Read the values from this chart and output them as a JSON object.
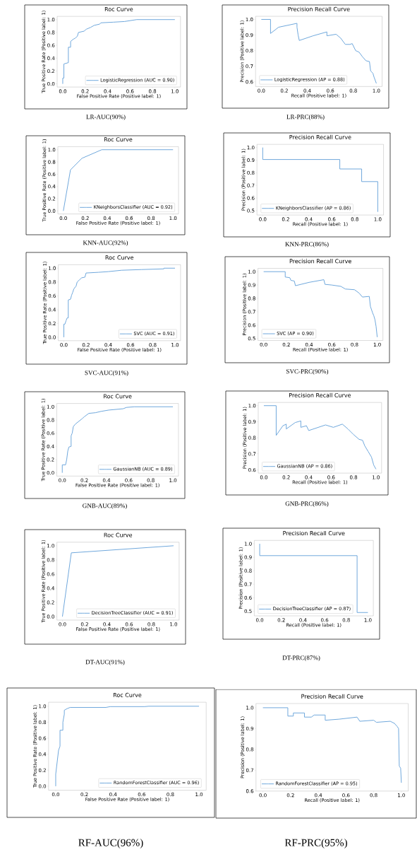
{
  "chart_data": [
    {
      "type": "line",
      "title": "Roc Curve",
      "xlabel": "False Positive Rate (Positive label: 1)",
      "ylabel": "True Positive Rate (Positive label: 1)",
      "legend": "bottom right",
      "annotations": [
        "LR-AUC(90%)"
      ],
      "series": [
        {
          "name": "LogisticRegression (AUC = 0.90)",
          "color": "#6fa8dc",
          "x": [
            0,
            0,
            0.01,
            0.01,
            0.05,
            0.05,
            0.07,
            0.07,
            0.09,
            0.11,
            0.13,
            0.14,
            0.19,
            0.21,
            0.25,
            0.28,
            0.33,
            0.34,
            0.45,
            0.55,
            0.66,
            1
          ],
          "values": [
            0,
            0.09,
            0.09,
            0.31,
            0.33,
            0.57,
            0.57,
            0.66,
            0.69,
            0.71,
            0.74,
            0.8,
            0.82,
            0.85,
            0.88,
            0.91,
            0.93,
            0.95,
            0.96,
            0.97,
            1,
            1
          ]
        }
      ],
      "xlim": [
        -0.05,
        1.05
      ],
      "ylim": [
        -0.05,
        1.05
      ],
      "xticks": [
        {
          "value": 0,
          "label": "0.0"
        },
        {
          "value": 0.2,
          "label": "0.2"
        },
        {
          "value": 0.4,
          "label": "0.4"
        },
        {
          "value": 0.6,
          "label": "0.6"
        },
        {
          "value": 0.8,
          "label": "0.8"
        },
        {
          "value": 1,
          "label": "1.0"
        }
      ],
      "yticks": [
        {
          "value": 0,
          "label": "0.0"
        },
        {
          "value": 0.2,
          "label": "0.2"
        },
        {
          "value": 0.4,
          "label": "0.4"
        },
        {
          "value": 0.6,
          "label": "0.6"
        },
        {
          "value": 0.8,
          "label": "0.8"
        },
        {
          "value": 1,
          "label": "1.0"
        }
      ]
    },
    {
      "type": "line",
      "title": "Precision Recall Curve",
      "xlabel": "Recall (Positive label: 1)",
      "ylabel": "Precision (Positive label: 1)",
      "legend": "bottom left",
      "annotations": [
        "LR-PRC(88%)"
      ],
      "series": [
        {
          "name": "LogisticRegression (AP = 0.88)",
          "color": "#6fa8dc",
          "x": [
            0,
            0.08,
            0.08,
            0.15,
            0.31,
            0.31,
            0.32,
            0.33,
            0.45,
            0.57,
            0.57,
            0.65,
            0.69,
            0.73,
            0.77,
            0.79,
            0.82,
            0.85,
            0.88,
            0.91,
            0.94,
            0.95,
            0.97,
            0.98,
            1
          ],
          "values": [
            1,
            1,
            0.91,
            0.95,
            0.975,
            0.95,
            0.9,
            0.865,
            0.895,
            0.92,
            0.895,
            0.905,
            0.88,
            0.84,
            0.84,
            0.845,
            0.8,
            0.79,
            0.76,
            0.735,
            0.73,
            0.67,
            0.655,
            0.63,
            0.59
          ]
        }
      ],
      "xlim": [
        -0.05,
        1.05
      ],
      "ylim": [
        0.57,
        1.02
      ],
      "xticks": [
        {
          "value": 0,
          "label": "0.0"
        },
        {
          "value": 0.2,
          "label": "0.2"
        },
        {
          "value": 0.4,
          "label": "0.4"
        },
        {
          "value": 0.6,
          "label": "0.6"
        },
        {
          "value": 0.8,
          "label": "0.8"
        },
        {
          "value": 1,
          "label": "1.0"
        }
      ],
      "yticks": [
        {
          "value": 0.6,
          "label": "0.6"
        },
        {
          "value": 0.7,
          "label": "0.7"
        },
        {
          "value": 0.8,
          "label": "0.8"
        },
        {
          "value": 0.9,
          "label": "0.9"
        },
        {
          "value": 1,
          "label": "1.0"
        }
      ]
    },
    {
      "type": "line",
      "title": "Roc Curve",
      "xlabel": "False Positive Rate (Positive label: 1)",
      "ylabel": "True Positive Rate (Positive label: 1)",
      "legend": "bottom right",
      "annotations": [
        "KNN-AUC(92%)"
      ],
      "series": [
        {
          "name": "KNeighborsClassifier (AUC = 0.92)",
          "color": "#6fa8dc",
          "x": [
            0,
            0.065,
            0.17,
            0.35,
            1
          ],
          "values": [
            0,
            0.67,
            0.86,
            1,
            1
          ]
        }
      ],
      "xlim": [
        -0.05,
        1.05
      ],
      "ylim": [
        -0.05,
        1.05
      ],
      "xticks": [
        {
          "value": 0,
          "label": "0.0"
        },
        {
          "value": 0.2,
          "label": "0.2"
        },
        {
          "value": 0.4,
          "label": "0.4"
        },
        {
          "value": 0.6,
          "label": "0.6"
        },
        {
          "value": 0.8,
          "label": "0.8"
        },
        {
          "value": 1,
          "label": "1.0"
        }
      ],
      "yticks": [
        {
          "value": 0,
          "label": "0.0"
        },
        {
          "value": 0.2,
          "label": "0.2"
        },
        {
          "value": 0.4,
          "label": "0.4"
        },
        {
          "value": 0.6,
          "label": "0.6"
        },
        {
          "value": 0.8,
          "label": "0.8"
        },
        {
          "value": 1,
          "label": "1.0"
        }
      ]
    },
    {
      "type": "line",
      "title": "Precision Recall Curve",
      "xlabel": "Recall (Positive label: 1)",
      "ylabel": "Precision (Positive label: 1)",
      "legend": "bottom left",
      "annotations": [
        "KNN-PRC(86%)"
      ],
      "series": [
        {
          "name": "KNeighborsClassifier (AP = 0.86)",
          "color": "#6fa8dc",
          "x": [
            0,
            0,
            0.67,
            0.67,
            0.86,
            0.86,
            1,
            1
          ],
          "values": [
            1,
            0.905,
            0.905,
            0.83,
            0.83,
            0.73,
            0.73,
            0.49
          ]
        }
      ],
      "xlim": [
        -0.05,
        1.05
      ],
      "ylim": [
        0.465,
        1.025
      ],
      "xticks": [
        {
          "value": 0,
          "label": "0.0"
        },
        {
          "value": 0.2,
          "label": "0.2"
        },
        {
          "value": 0.4,
          "label": "0.4"
        },
        {
          "value": 0.6,
          "label": "0.6"
        },
        {
          "value": 0.8,
          "label": "0.8"
        },
        {
          "value": 1,
          "label": "1.0"
        }
      ],
      "yticks": [
        {
          "value": 0.5,
          "label": "0.5"
        },
        {
          "value": 0.6,
          "label": "0.6"
        },
        {
          "value": 0.7,
          "label": "0.7"
        },
        {
          "value": 0.8,
          "label": "0.8"
        },
        {
          "value": 0.9,
          "label": "0.9"
        },
        {
          "value": 1,
          "label": "1.0"
        }
      ]
    },
    {
      "type": "line",
      "title": "Roc Curve",
      "xlabel": "False Positive Rate (Positive label: 1)",
      "ylabel": "True Positive Rate (Positive label: 1)",
      "legend": "bottom right",
      "annotations": [
        "SVC-AUC(91%)"
      ],
      "series": [
        {
          "name": "SVC (AUC = 0.91)",
          "color": "#6fa8dc",
          "x": [
            0,
            0,
            0.01,
            0.02,
            0.03,
            0.04,
            0.04,
            0.06,
            0.07,
            0.08,
            0.09,
            0.11,
            0.12,
            0.14,
            0.16,
            0.19,
            0.2,
            0.31,
            0.4,
            0.52,
            0.7,
            0.9,
            0.9,
            1
          ],
          "values": [
            0,
            0.19,
            0.19,
            0.24,
            0.28,
            0.28,
            0.54,
            0.55,
            0.61,
            0.65,
            0.7,
            0.74,
            0.8,
            0.83,
            0.86,
            0.87,
            0.93,
            0.94,
            0.95,
            0.97,
            0.98,
            0.99,
            1,
            1
          ]
        }
      ],
      "xlim": [
        -0.05,
        1.05
      ],
      "ylim": [
        -0.05,
        1.05
      ],
      "xticks": [
        {
          "value": 0,
          "label": "0.0"
        },
        {
          "value": 0.2,
          "label": "0.2"
        },
        {
          "value": 0.4,
          "label": "0.4"
        },
        {
          "value": 0.6,
          "label": "0.6"
        },
        {
          "value": 0.8,
          "label": "0.8"
        },
        {
          "value": 1,
          "label": "1.0"
        }
      ],
      "yticks": [
        {
          "value": 0,
          "label": "0.0"
        },
        {
          "value": 0.2,
          "label": "0.2"
        },
        {
          "value": 0.4,
          "label": "0.4"
        },
        {
          "value": 0.6,
          "label": "0.6"
        },
        {
          "value": 0.8,
          "label": "0.8"
        },
        {
          "value": 1,
          "label": "1.0"
        }
      ]
    },
    {
      "type": "line",
      "title": "Precision Recall Curve",
      "xlabel": "Recall (Positive label: 1)",
      "ylabel": "Precision (Positive label: 1)",
      "legend": "bottom left",
      "annotations": [
        "SVC-PRC(90%)"
      ],
      "series": [
        {
          "name": "SVC (AP = 0.90)",
          "color": "#6fa8dc",
          "x": [
            0,
            0.19,
            0.19,
            0.23,
            0.24,
            0.27,
            0.28,
            0.4,
            0.53,
            0.54,
            0.6,
            0.68,
            0.72,
            0.8,
            0.84,
            0.87,
            0.93,
            0.94,
            0.96,
            0.97,
            0.98,
            0.99,
            1
          ],
          "values": [
            1,
            1,
            0.96,
            0.955,
            0.935,
            0.93,
            0.895,
            0.92,
            0.94,
            0.905,
            0.9,
            0.89,
            0.87,
            0.865,
            0.84,
            0.81,
            0.815,
            0.74,
            0.69,
            0.67,
            0.64,
            0.59,
            0.51
          ]
        }
      ],
      "xlim": [
        -0.05,
        1.05
      ],
      "ylim": [
        0.485,
        1.025
      ],
      "xticks": [
        {
          "value": 0,
          "label": "0.0"
        },
        {
          "value": 0.2,
          "label": "0.2"
        },
        {
          "value": 0.4,
          "label": "0.4"
        },
        {
          "value": 0.6,
          "label": "0.6"
        },
        {
          "value": 0.8,
          "label": "0.8"
        },
        {
          "value": 1,
          "label": "1.0"
        }
      ],
      "yticks": [
        {
          "value": 0.5,
          "label": "0.5"
        },
        {
          "value": 0.6,
          "label": "0.6"
        },
        {
          "value": 0.7,
          "label": "0.7"
        },
        {
          "value": 0.8,
          "label": "0.8"
        },
        {
          "value": 0.9,
          "label": "0.9"
        },
        {
          "value": 1,
          "label": "1.0"
        }
      ]
    },
    {
      "type": "line",
      "title": "Roc Curve",
      "xlabel": "False Positive Rate (Positive label: 1)",
      "ylabel": "True Positive Rate (Positive label: 1)",
      "legend": "bottom right",
      "annotations": [
        "GNB-AUC(89%)"
      ],
      "series": [
        {
          "name": "GaussianNB (AUC = 0.89)",
          "color": "#6fa8dc",
          "x": [
            0,
            0,
            0.03,
            0.04,
            0.05,
            0.06,
            0.08,
            0.08,
            0.09,
            0.1,
            0.12,
            0.15,
            0.18,
            0.2,
            0.24,
            0.3,
            0.35,
            0.42,
            0.55,
            0.58,
            0.65,
            1
          ],
          "values": [
            0,
            0.12,
            0.12,
            0.2,
            0.33,
            0.39,
            0.4,
            0.56,
            0.6,
            0.7,
            0.74,
            0.78,
            0.82,
            0.85,
            0.9,
            0.91,
            0.93,
            0.95,
            0.97,
            0.99,
            1,
            1
          ]
        }
      ],
      "xlim": [
        -0.05,
        1.05
      ],
      "ylim": [
        -0.05,
        1.05
      ],
      "xticks": [
        {
          "value": 0,
          "label": "0.0"
        },
        {
          "value": 0.2,
          "label": "0.2"
        },
        {
          "value": 0.4,
          "label": "0.4"
        },
        {
          "value": 0.6,
          "label": "0.6"
        },
        {
          "value": 0.8,
          "label": "0.8"
        },
        {
          "value": 1,
          "label": "1.0"
        }
      ],
      "yticks": [
        {
          "value": 0,
          "label": "0.0"
        },
        {
          "value": 0.2,
          "label": "0.2"
        },
        {
          "value": 0.4,
          "label": "0.4"
        },
        {
          "value": 0.6,
          "label": "0.6"
        },
        {
          "value": 0.8,
          "label": "0.8"
        },
        {
          "value": 1,
          "label": "1.0"
        }
      ]
    },
    {
      "type": "line",
      "title": "Precision Recall Curve",
      "xlabel": "Recall (Positive label: 1)",
      "ylabel": "Precision (Positive label: 1)",
      "legend": "bottom left",
      "annotations": [
        "GNB-PRC(86%)"
      ],
      "series": [
        {
          "name": "GaussianNB (AP = 0.86)",
          "color": "#6fa8dc",
          "x": [
            0,
            0.11,
            0.11,
            0.17,
            0.2,
            0.2,
            0.28,
            0.33,
            0.33,
            0.38,
            0.4,
            0.55,
            0.62,
            0.7,
            0.75,
            0.8,
            0.85,
            0.88,
            0.9,
            0.93,
            0.96,
            0.98,
            1
          ],
          "values": [
            1,
            1,
            0.815,
            0.875,
            0.885,
            0.855,
            0.895,
            0.905,
            0.865,
            0.875,
            0.845,
            0.88,
            0.865,
            0.885,
            0.855,
            0.82,
            0.79,
            0.785,
            0.75,
            0.715,
            0.68,
            0.63,
            0.605
          ]
        }
      ],
      "xlim": [
        -0.05,
        1.05
      ],
      "ylim": [
        0.58,
        1.02
      ],
      "xticks": [
        {
          "value": 0,
          "label": "0.0"
        },
        {
          "value": 0.2,
          "label": "0.2"
        },
        {
          "value": 0.4,
          "label": "0.4"
        },
        {
          "value": 0.6,
          "label": "0.6"
        },
        {
          "value": 0.8,
          "label": "0.8"
        },
        {
          "value": 1,
          "label": "1.0"
        }
      ],
      "yticks": [
        {
          "value": 0.6,
          "label": "0.6"
        },
        {
          "value": 0.7,
          "label": "0.7"
        },
        {
          "value": 0.8,
          "label": "0.8"
        },
        {
          "value": 0.9,
          "label": "0.9"
        },
        {
          "value": 1,
          "label": "1.0"
        }
      ]
    },
    {
      "type": "line",
      "title": "Roc Curve",
      "xlabel": "False Positive Rate (Positive label: 1)",
      "ylabel": "True Positive Rate (Positive label: 1)",
      "legend": "bottom right",
      "annotations": [
        "DT-AUC(91%)"
      ],
      "series": [
        {
          "name": "DecisionTreeClassifier (AUC = 0.91)",
          "color": "#6fa8dc",
          "x": [
            0,
            0.08,
            1
          ],
          "values": [
            0,
            0.9,
            1
          ]
        }
      ],
      "xlim": [
        -0.05,
        1.05
      ],
      "ylim": [
        -0.05,
        1.05
      ],
      "xticks": [
        {
          "value": 0,
          "label": "0.0"
        },
        {
          "value": 0.2,
          "label": "0.2"
        },
        {
          "value": 0.4,
          "label": "0.4"
        },
        {
          "value": 0.6,
          "label": "0.6"
        },
        {
          "value": 0.8,
          "label": "0.8"
        },
        {
          "value": 1,
          "label": "1.0"
        }
      ],
      "yticks": [
        {
          "value": 0,
          "label": "0.0"
        },
        {
          "value": 0.2,
          "label": "0.2"
        },
        {
          "value": 0.4,
          "label": "0.4"
        },
        {
          "value": 0.6,
          "label": "0.6"
        },
        {
          "value": 0.8,
          "label": "0.8"
        },
        {
          "value": 1,
          "label": "1.0"
        }
      ]
    },
    {
      "type": "line",
      "title": "Precision Recall Curve",
      "xlabel": "Recall (Positive label: 1)",
      "ylabel": "Precision (Positive label: 1)",
      "legend": "bottom left",
      "annotations": [
        "DT-PRC(87%)"
      ],
      "series": [
        {
          "name": "DecisionTreeClassifier (AP = 0.87)",
          "color": "#6fa8dc",
          "x": [
            0,
            0,
            0.9,
            0.9,
            1
          ],
          "values": [
            1,
            0.912,
            0.912,
            0.49,
            0.49
          ]
        }
      ],
      "xlim": [
        -0.05,
        1.05
      ],
      "ylim": [
        0.465,
        1.025
      ],
      "xticks": [
        {
          "value": 0,
          "label": "0.0"
        },
        {
          "value": 0.2,
          "label": "0.2"
        },
        {
          "value": 0.4,
          "label": "0.4"
        },
        {
          "value": 0.6,
          "label": "0.6"
        },
        {
          "value": 0.8,
          "label": "0.8"
        },
        {
          "value": 1,
          "label": "1.0"
        }
      ],
      "yticks": [
        {
          "value": 0.5,
          "label": "0.5"
        },
        {
          "value": 0.6,
          "label": "0.6"
        },
        {
          "value": 0.7,
          "label": "0.7"
        },
        {
          "value": 0.8,
          "label": "0.8"
        },
        {
          "value": 0.9,
          "label": "0.9"
        },
        {
          "value": 1,
          "label": "1.0"
        }
      ]
    },
    {
      "type": "line",
      "title": "Roc Curve",
      "xlabel": "False Positive Rate (Positive label: 1)",
      "ylabel": "True Positive Rate (Positive label: 1)",
      "legend": "bottom right",
      "annotations": [
        "RF-AUC(96%)"
      ],
      "series": [
        {
          "name": "RandomForestClassifier (AUC = 0.96)",
          "color": "#6fa8dc",
          "x": [
            0,
            0,
            0.01,
            0.02,
            0.03,
            0.03,
            0.05,
            0.05,
            0.06,
            0.06,
            0.08,
            0.1,
            0.35,
            0.38,
            0.62,
            0.65,
            1
          ],
          "values": [
            0,
            0.15,
            0.3,
            0.45,
            0.5,
            0.7,
            0.7,
            0.8,
            0.9,
            0.95,
            0.97,
            0.985,
            0.985,
            0.995,
            0.995,
            1,
            1
          ]
        }
      ],
      "xlim": [
        -0.05,
        1.05
      ],
      "ylim": [
        -0.05,
        1.05
      ],
      "xticks": [
        {
          "value": 0,
          "label": "0.0"
        },
        {
          "value": 0.2,
          "label": "0.2"
        },
        {
          "value": 0.4,
          "label": "0.4"
        },
        {
          "value": 0.6,
          "label": "0.6"
        },
        {
          "value": 0.8,
          "label": "0.8"
        },
        {
          "value": 1,
          "label": "1.0"
        }
      ],
      "yticks": [
        {
          "value": 0,
          "label": "0.0"
        },
        {
          "value": 0.2,
          "label": "0.2"
        },
        {
          "value": 0.4,
          "label": "0.4"
        },
        {
          "value": 0.6,
          "label": "0.6"
        },
        {
          "value": 0.8,
          "label": "0.8"
        },
        {
          "value": 1,
          "label": "1.0"
        }
      ]
    },
    {
      "type": "line",
      "title": "Precision Recall Curve",
      "xlabel": "Recall (Positive label: 1)",
      "ylabel": "Precision (Positive label: 1)",
      "legend": "bottom left",
      "annotations": [
        "RF-PRC(95%)"
      ],
      "series": [
        {
          "name": "RandomForestClassifier (AP = 0.95)",
          "color": "#6fa8dc",
          "x": [
            0,
            0.18,
            0.18,
            0.22,
            0.22,
            0.3,
            0.3,
            0.35,
            0.37,
            0.45,
            0.45,
            0.55,
            0.68,
            0.7,
            0.8,
            0.82,
            0.92,
            0.95,
            0.97,
            0.98,
            0.985,
            0.995,
            1
          ],
          "values": [
            1,
            1,
            0.96,
            0.96,
            0.975,
            0.975,
            0.955,
            0.955,
            0.965,
            0.965,
            0.94,
            0.945,
            0.955,
            0.935,
            0.94,
            0.93,
            0.935,
            0.925,
            0.91,
            0.9,
            0.72,
            0.71,
            0.64
          ]
        }
      ],
      "xlim": [
        -0.05,
        1.05
      ],
      "ylim": [
        0.6,
        1.02
      ],
      "xticks": [
        {
          "value": 0,
          "label": "0.0"
        },
        {
          "value": 0.2,
          "label": "0.2"
        },
        {
          "value": 0.4,
          "label": "0.4"
        },
        {
          "value": 0.6,
          "label": "0.6"
        },
        {
          "value": 0.8,
          "label": "0.8"
        },
        {
          "value": 1,
          "label": "1.0"
        }
      ],
      "yticks": [
        {
          "value": 0.6,
          "label": "0.6"
        },
        {
          "value": 0.7,
          "label": "0.7"
        },
        {
          "value": 0.8,
          "label": "0.8"
        },
        {
          "value": 0.9,
          "label": "0.9"
        },
        {
          "value": 1,
          "label": "1.0"
        }
      ]
    }
  ]
}
